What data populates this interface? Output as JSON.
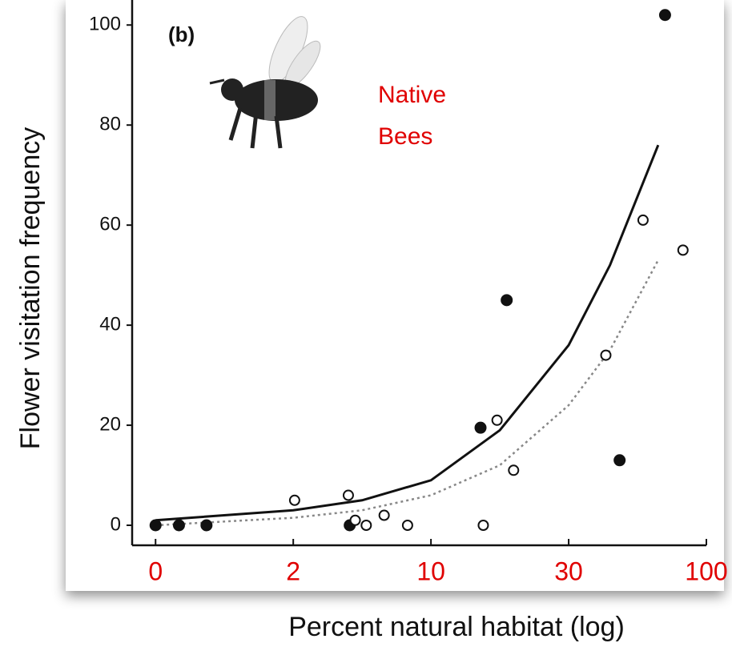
{
  "chart_data": {
    "type": "scatter",
    "title": "(b)",
    "annotation": [
      "Native",
      "Bees"
    ],
    "annotation_color": "#e00000",
    "xlabel": "Percent natural habitat (log)",
    "ylabel": "Flower visitation frequency",
    "xlim": [
      -0.17,
      4.0
    ],
    "ylim": [
      -4,
      105
    ],
    "xticks": [
      {
        "value": 0,
        "label": "0"
      },
      {
        "value": 1,
        "label": "2"
      },
      {
        "value": 2,
        "label": "10"
      },
      {
        "value": 3,
        "label": "30"
      },
      {
        "value": 4,
        "label": "100"
      }
    ],
    "xtick_color": "#e00000",
    "yticks": [
      0,
      20,
      40,
      60,
      80,
      100
    ],
    "series": [
      {
        "color": "#111111",
        "marker": "filled",
        "x": [
          0,
          0.17,
          0.37,
          1.41,
          2.36,
          2.55,
          3.37,
          3.7
        ],
        "values": [
          0,
          0,
          0,
          0,
          19.5,
          45,
          13,
          102
        ]
      },
      {
        "color": "#111111",
        "marker": "open",
        "x": [
          1.01,
          1.4,
          1.45,
          1.53,
          1.66,
          1.83,
          2.38,
          2.48,
          2.6,
          3.27,
          3.54,
          3.83
        ],
        "values": [
          5,
          6,
          1,
          0,
          2,
          0,
          0,
          21,
          11,
          34,
          61,
          55
        ]
      }
    ],
    "fits": [
      {
        "style": "solid",
        "color": "#111111",
        "x": [
          0,
          1,
          1.5,
          2,
          2.5,
          3,
          3.3,
          3.65
        ],
        "values": [
          1,
          3,
          5,
          9,
          19,
          36,
          52,
          76
        ]
      },
      {
        "style": "dotted",
        "color": "#888888",
        "x": [
          0,
          1,
          1.5,
          2,
          2.5,
          3,
          3.3,
          3.65
        ],
        "values": [
          0,
          1.5,
          3,
          6,
          12,
          24,
          35,
          53
        ]
      }
    ]
  }
}
